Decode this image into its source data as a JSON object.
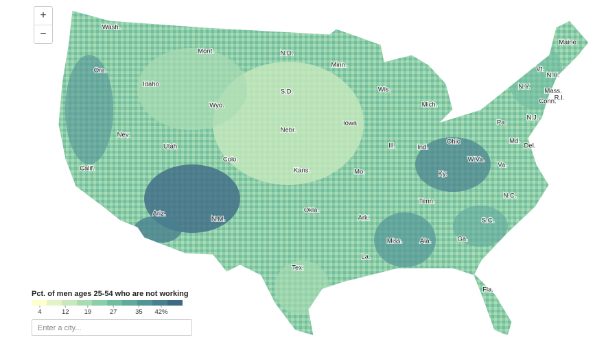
{
  "zoom": {
    "in": "+",
    "out": "−"
  },
  "legend": {
    "title": "Pct. of men ages 25-54 who are not working",
    "colors": [
      "#ffffcc",
      "#e3f4c4",
      "#c7e9bd",
      "#a9dcb3",
      "#8ccea9",
      "#72bca0",
      "#60a99c",
      "#539597",
      "#48808f",
      "#3e6a86"
    ],
    "ticks": [
      4,
      12,
      19,
      27,
      35,
      {
        "value": 42,
        "label": "42%"
      }
    ]
  },
  "search": {
    "placeholder": "Enter a city..."
  },
  "labels": {
    "states": [
      "Wash.",
      "Mont.",
      "N.D.",
      "Minn.",
      "Maine",
      "Ore.",
      "Idaho",
      "S.D.",
      "Wis.",
      "Mich.",
      "Vt.",
      "N.H.",
      "N.Y.",
      "Mass.",
      "R.I.",
      "Conn.",
      "Wyo.",
      "Nebr.",
      "Iowa",
      "Pa.",
      "N.J.",
      "Nev.",
      "Utah",
      "Colo.",
      "Ill.",
      "Ind.",
      "Ohio",
      "Md.",
      "Del.",
      "Calif.",
      "Kans.",
      "Mo.",
      "W.Va.",
      "Va.",
      "Ky.",
      "Tenn.",
      "N.C.",
      "Okla.",
      "Ark.",
      "Ariz.",
      "N.M.",
      "S.C.",
      "Miss.",
      "Ala.",
      "Ga.",
      "La.",
      "Tex.",
      "Fla."
    ]
  }
}
